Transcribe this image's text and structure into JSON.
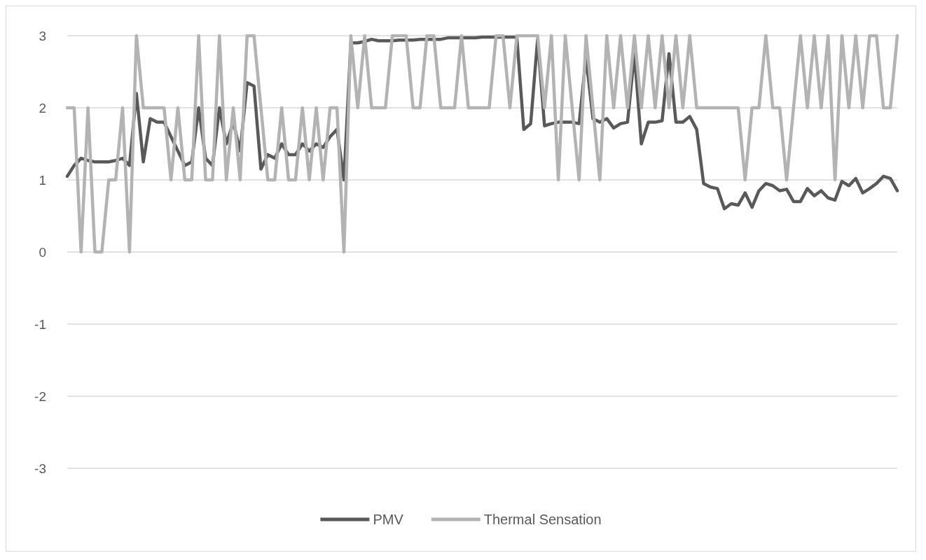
{
  "chart_data": {
    "type": "line",
    "categories": [
      null,
      null,
      null,
      null,
      null,
      null,
      null,
      null,
      null,
      null,
      null,
      null,
      null,
      null,
      null,
      null,
      null,
      null,
      null,
      null,
      null,
      null,
      null,
      null,
      null,
      null,
      null,
      null,
      null,
      null,
      null,
      null,
      null,
      null,
      null,
      null,
      null,
      null,
      null,
      null,
      null,
      null,
      null,
      null,
      null,
      null,
      null,
      null,
      null,
      null,
      null,
      null,
      null,
      null,
      null,
      null,
      null,
      null,
      null,
      null,
      null,
      null,
      null,
      null,
      null,
      null,
      null,
      null,
      null,
      null,
      null,
      null,
      null,
      null,
      null,
      null,
      null,
      null,
      null,
      null,
      null,
      null,
      null,
      null,
      null,
      null,
      null,
      null,
      null,
      null,
      null,
      null,
      null,
      null,
      null,
      null,
      null,
      null,
      null,
      null,
      null,
      null,
      null,
      null,
      null,
      null,
      null,
      null,
      null,
      null,
      null,
      null,
      null,
      null,
      null,
      null,
      null,
      null,
      null,
      null,
      null
    ],
    "series": [
      {
        "name": "PMV",
        "color": "#595959",
        "values": [
          1.05,
          1.2,
          1.3,
          1.27,
          1.25,
          1.25,
          1.25,
          1.27,
          1.3,
          1.2,
          2.2,
          1.25,
          1.85,
          1.8,
          1.8,
          1.6,
          1.4,
          1.2,
          1.25,
          2.0,
          1.3,
          1.2,
          2.0,
          1.5,
          1.8,
          1.4,
          2.35,
          2.3,
          1.15,
          1.35,
          1.3,
          1.5,
          1.35,
          1.35,
          1.5,
          1.4,
          1.5,
          1.45,
          1.6,
          1.7,
          1.0,
          2.9,
          2.9,
          2.92,
          2.95,
          2.93,
          2.93,
          2.93,
          2.94,
          2.94,
          2.94,
          2.95,
          2.95,
          2.95,
          2.95,
          2.97,
          2.97,
          2.97,
          2.97,
          2.97,
          2.98,
          2.98,
          2.98,
          2.98,
          2.98,
          2.98,
          1.7,
          1.78,
          2.95,
          1.75,
          1.78,
          1.8,
          1.8,
          1.8,
          1.78,
          2.7,
          1.85,
          1.8,
          1.85,
          1.72,
          1.78,
          1.8,
          2.75,
          1.5,
          1.8,
          1.8,
          1.82,
          2.75,
          1.8,
          1.8,
          1.88,
          1.7,
          0.95,
          0.9,
          0.88,
          0.6,
          0.67,
          0.65,
          0.82,
          0.62,
          0.85,
          0.95,
          0.92,
          0.85,
          0.87,
          0.7,
          0.7,
          0.88,
          0.78,
          0.85,
          0.75,
          0.72,
          0.98,
          0.92,
          1.02,
          0.82,
          0.88,
          0.95,
          1.05,
          1.02,
          0.85
        ]
      },
      {
        "name": "Thermal Sensation",
        "color": "#b3b3b3",
        "values": [
          2,
          2,
          0,
          2,
          0,
          0,
          1,
          1,
          2,
          0,
          3,
          2,
          2,
          2,
          2,
          1,
          2,
          1,
          1,
          3,
          1,
          1,
          3,
          1,
          2,
          1,
          3,
          3,
          2,
          1,
          1,
          2,
          1,
          1,
          2,
          1,
          2,
          1,
          2,
          2,
          0,
          3,
          2,
          3,
          2,
          2,
          2,
          3,
          3,
          3,
          2,
          2,
          3,
          3,
          2,
          2,
          2,
          3,
          2,
          2,
          2,
          2,
          3,
          3,
          2,
          3,
          3,
          3,
          3,
          2,
          3,
          1,
          3,
          2,
          1,
          3,
          2,
          1,
          3,
          2,
          3,
          2,
          3,
          2,
          3,
          2,
          3,
          2,
          3,
          2,
          3,
          2,
          2,
          2,
          2,
          2,
          2,
          2,
          1,
          2,
          2,
          3,
          2,
          2,
          1,
          2,
          3,
          2,
          3,
          2,
          3,
          1,
          3,
          2,
          3,
          2,
          3,
          3,
          2,
          2,
          3
        ]
      }
    ],
    "ylim": [
      -3,
      3
    ],
    "yticks": [
      -3,
      -2,
      -1,
      0,
      1,
      2,
      3
    ],
    "grid": "y",
    "legend": "bottom",
    "marker": "none",
    "line_style": "solid"
  }
}
